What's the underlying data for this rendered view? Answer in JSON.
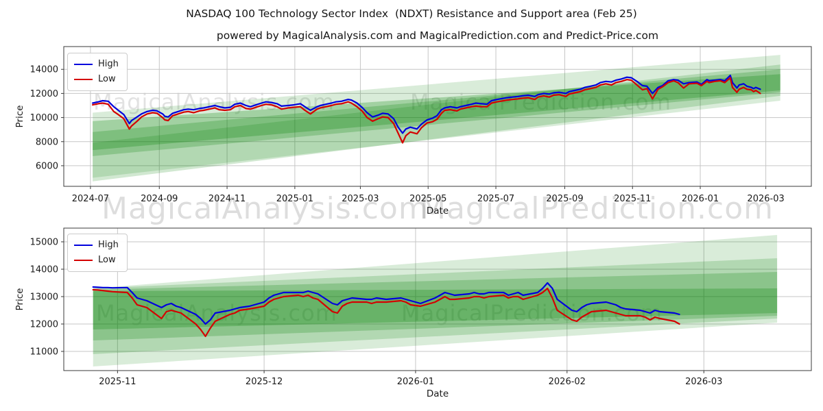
{
  "figure": {
    "title": "NASDAQ 100 Technology Sector Index  (NDXT) Resistance and Support area (Feb 25)",
    "subtitle": "powered by MagicalAnalysis.com and MagicalPrediction.com and Predict-Price.com"
  },
  "watermarks": {
    "analysis": "MagicalAnalysis.com",
    "prediction": "MagicalPrediction.com"
  },
  "colors": {
    "high": "#0000dd",
    "low": "#d40000",
    "band": "#008000",
    "grid": "#c6c6c6",
    "spine": "#3a3a3a",
    "text": "#191919"
  },
  "chart_data": [
    {
      "type": "line",
      "xlabel": "Date",
      "ylabel": "Price",
      "grid": true,
      "legend_position": "upper-left",
      "legend": [
        "High",
        "Low"
      ],
      "x_ticks": [
        "2024-07",
        "2024-09",
        "2024-11",
        "2025-01",
        "2025-03",
        "2025-05",
        "2025-07",
        "2025-09",
        "2025-11",
        "2026-01",
        "2026-03"
      ],
      "y_ticks": [
        6000,
        8000,
        10000,
        12000,
        14000
      ],
      "xlim": [
        "2024-06-07",
        "2026-04-11"
      ],
      "ylim": [
        4290,
        15890
      ],
      "dates": [
        "2024-07-03",
        "2024-07-08",
        "2024-07-12",
        "2024-07-17",
        "2024-07-22",
        "2024-07-26",
        "2024-07-31",
        "2024-08-05",
        "2024-08-07",
        "2024-08-12",
        "2024-08-16",
        "2024-08-21",
        "2024-08-26",
        "2024-08-30",
        "2024-09-04",
        "2024-09-06",
        "2024-09-09",
        "2024-09-13",
        "2024-09-18",
        "2024-09-23",
        "2024-09-27",
        "2024-10-02",
        "2024-10-07",
        "2024-10-11",
        "2024-10-16",
        "2024-10-21",
        "2024-10-25",
        "2024-10-30",
        "2024-11-04",
        "2024-11-08",
        "2024-11-13",
        "2024-11-18",
        "2024-11-22",
        "2024-11-27",
        "2024-12-02",
        "2024-12-06",
        "2024-12-11",
        "2024-12-16",
        "2024-12-20",
        "2024-12-26",
        "2024-12-31",
        "2025-01-06",
        "2025-01-10",
        "2025-01-15",
        "2025-01-21",
        "2025-01-24",
        "2025-01-29",
        "2025-02-03",
        "2025-02-07",
        "2025-02-12",
        "2025-02-18",
        "2025-02-21",
        "2025-02-26",
        "2025-03-03",
        "2025-03-07",
        "2025-03-12",
        "2025-03-17",
        "2025-03-21",
        "2025-03-26",
        "2025-03-31",
        "2025-04-04",
        "2025-04-08",
        "2025-04-11",
        "2025-04-15",
        "2025-04-21",
        "2025-04-25",
        "2025-04-30",
        "2025-05-05",
        "2025-05-09",
        "2025-05-13",
        "2025-05-16",
        "2025-05-21",
        "2025-05-27",
        "2025-05-30",
        "2025-06-04",
        "2025-06-09",
        "2025-06-13",
        "2025-06-18",
        "2025-06-23",
        "2025-06-27",
        "2025-07-02",
        "2025-07-08",
        "2025-07-11",
        "2025-07-16",
        "2025-07-21",
        "2025-07-25",
        "2025-07-30",
        "2025-08-05",
        "2025-08-08",
        "2025-08-13",
        "2025-08-18",
        "2025-08-22",
        "2025-08-27",
        "2025-09-02",
        "2025-09-05",
        "2025-09-10",
        "2025-09-15",
        "2025-09-19",
        "2025-09-24",
        "2025-09-29",
        "2025-10-03",
        "2025-10-08",
        "2025-10-13",
        "2025-10-17",
        "2025-10-22",
        "2025-10-27",
        "2025-10-31",
        "2025-11-05",
        "2025-11-10",
        "2025-11-14",
        "2025-11-19",
        "2025-11-24",
        "2025-11-28",
        "2025-12-03",
        "2025-12-08",
        "2025-12-12",
        "2025-12-17",
        "2025-12-22",
        "2025-12-29",
        "2026-01-02",
        "2026-01-07",
        "2026-01-09",
        "2026-01-14",
        "2026-01-19",
        "2026-01-23",
        "2026-01-28",
        "2026-01-30",
        "2026-02-03",
        "2026-02-05",
        "2026-02-09",
        "2026-02-12",
        "2026-02-16",
        "2026-02-18",
        "2026-02-20",
        "2026-02-24"
      ],
      "series": [
        {
          "name": "High",
          "color": "#0000dd",
          "values": [
            11200,
            11300,
            11400,
            11350,
            10900,
            10600,
            10250,
            9500,
            9750,
            10050,
            10300,
            10500,
            10600,
            10550,
            10300,
            10100,
            10050,
            10350,
            10500,
            10650,
            10700,
            10650,
            10750,
            10800,
            10900,
            11000,
            10900,
            10800,
            10850,
            11100,
            11200,
            11000,
            10900,
            11050,
            11200,
            11300,
            11250,
            11150,
            10950,
            11000,
            11050,
            11150,
            10900,
            10600,
            10900,
            11000,
            11100,
            11200,
            11300,
            11350,
            11500,
            11450,
            11200,
            10800,
            10400,
            10050,
            10200,
            10350,
            10300,
            9900,
            9200,
            8700,
            9050,
            9200,
            9050,
            9450,
            9800,
            9950,
            10150,
            10650,
            10800,
            10900,
            10800,
            10900,
            11000,
            11100,
            11200,
            11150,
            11100,
            11400,
            11500,
            11600,
            11650,
            11700,
            11750,
            11800,
            11850,
            11750,
            11900,
            12000,
            11950,
            12050,
            12100,
            12000,
            12150,
            12250,
            12350,
            12500,
            12600,
            12700,
            12900,
            13000,
            12950,
            13100,
            13200,
            13350,
            13300,
            13000,
            12650,
            12600,
            12000,
            12500,
            12650,
            13050,
            13150,
            13100,
            12800,
            12900,
            12950,
            12750,
            13150,
            13050,
            13100,
            13150,
            13050,
            13500,
            12900,
            12450,
            12700,
            12800,
            12600,
            12500,
            12400,
            12500,
            12350
          ]
        },
        {
          "name": "Low",
          "color": "#d40000",
          "values": [
            11050,
            11150,
            11200,
            11100,
            10500,
            10250,
            9900,
            9050,
            9300,
            9700,
            10050,
            10300,
            10400,
            10350,
            10000,
            9800,
            9750,
            10150,
            10300,
            10450,
            10500,
            10400,
            10550,
            10600,
            10700,
            10800,
            10650,
            10600,
            10650,
            10900,
            11000,
            10750,
            10700,
            10850,
            11000,
            11100,
            11050,
            10900,
            10700,
            10800,
            10850,
            10900,
            10600,
            10300,
            10700,
            10800,
            10900,
            11000,
            11100,
            11150,
            11300,
            11200,
            10900,
            10500,
            10000,
            9700,
            9900,
            10050,
            10000,
            9500,
            8700,
            7900,
            8500,
            8800,
            8650,
            9150,
            9550,
            9650,
            9850,
            10350,
            10600,
            10650,
            10550,
            10700,
            10800,
            10900,
            10950,
            10900,
            10900,
            11200,
            11300,
            11400,
            11450,
            11500,
            11550,
            11600,
            11650,
            11500,
            11700,
            11800,
            11700,
            11850,
            11900,
            11750,
            11950,
            12050,
            12150,
            12300,
            12400,
            12500,
            12700,
            12800,
            12700,
            12900,
            13000,
            13150,
            13100,
            12700,
            12300,
            12400,
            11550,
            12350,
            12550,
            12900,
            13050,
            12900,
            12450,
            12800,
            12850,
            12650,
            13000,
            12900,
            13000,
            13050,
            12900,
            13300,
            12500,
            12100,
            12350,
            12500,
            12350,
            12300,
            12150,
            12250,
            12000
          ]
        }
      ],
      "bands": [
        {
          "start": "2024-07-03",
          "end": "2026-03-14",
          "start_range": [
            5000,
            10400
          ],
          "end_range": [
            11400,
            15200
          ],
          "opacity": 0.15
        },
        {
          "start": "2024-07-03",
          "end": "2026-03-14",
          "start_range": [
            4700,
            7900
          ],
          "end_range": [
            11800,
            14400
          ],
          "opacity": 0.18
        },
        {
          "start": "2024-07-03",
          "end": "2026-03-14",
          "start_range": [
            6800,
            8800
          ],
          "end_range": [
            12100,
            14000
          ],
          "opacity": 0.22
        },
        {
          "start": "2024-07-03",
          "end": "2026-03-14",
          "start_range": [
            7300,
            9700
          ],
          "end_range": [
            12250,
            13600
          ],
          "opacity": 0.25
        }
      ]
    },
    {
      "type": "line",
      "xlabel": "Date",
      "ylabel": "Price",
      "grid": true,
      "legend_position": "upper-left",
      "legend": [
        "High",
        "Low"
      ],
      "x_ticks": [
        "2025-11",
        "2025-12",
        "2026-01",
        "2026-02",
        "2026-03"
      ],
      "y_ticks": [
        11000,
        12000,
        13000,
        14000,
        15000
      ],
      "xlim": [
        "2025-10-21",
        "2026-03-23"
      ],
      "ylim": [
        10300,
        15500
      ],
      "dates": [
        "2025-10-27",
        "2025-10-28",
        "2025-10-29",
        "2025-10-30",
        "2025-10-31",
        "2025-11-03",
        "2025-11-04",
        "2025-11-05",
        "2025-11-06",
        "2025-11-07",
        "2025-11-10",
        "2025-11-11",
        "2025-11-12",
        "2025-11-13",
        "2025-11-14",
        "2025-11-17",
        "2025-11-18",
        "2025-11-19",
        "2025-11-20",
        "2025-11-21",
        "2025-11-24",
        "2025-11-25",
        "2025-11-26",
        "2025-11-28",
        "2025-12-01",
        "2025-12-02",
        "2025-12-03",
        "2025-12-04",
        "2025-12-05",
        "2025-12-08",
        "2025-12-09",
        "2025-12-10",
        "2025-12-11",
        "2025-12-12",
        "2025-12-15",
        "2025-12-16",
        "2025-12-17",
        "2025-12-18",
        "2025-12-19",
        "2025-12-22",
        "2025-12-23",
        "2025-12-24",
        "2025-12-26",
        "2025-12-29",
        "2025-12-30",
        "2025-12-31",
        "2026-01-02",
        "2026-01-05",
        "2026-01-06",
        "2026-01-07",
        "2026-01-08",
        "2026-01-09",
        "2026-01-12",
        "2026-01-13",
        "2026-01-14",
        "2026-01-15",
        "2026-01-16",
        "2026-01-19",
        "2026-01-20",
        "2026-01-21",
        "2026-01-22",
        "2026-01-23",
        "2026-01-26",
        "2026-01-27",
        "2026-01-28",
        "2026-01-29",
        "2026-01-30",
        "2026-02-02",
        "2026-02-03",
        "2026-02-04",
        "2026-02-05",
        "2026-02-06",
        "2026-02-09",
        "2026-02-10",
        "2026-02-11",
        "2026-02-12",
        "2026-02-13",
        "2026-02-16",
        "2026-02-17",
        "2026-02-18",
        "2026-02-19",
        "2026-02-20",
        "2026-02-23",
        "2026-02-24"
      ],
      "series": [
        {
          "name": "High",
          "color": "#0000dd",
          "values": [
            13350,
            13340,
            13330,
            13330,
            13320,
            13330,
            13150,
            12950,
            12900,
            12850,
            12600,
            12700,
            12750,
            12650,
            12600,
            12350,
            12200,
            12000,
            12150,
            12400,
            12500,
            12550,
            12600,
            12650,
            12800,
            12950,
            13050,
            13100,
            13150,
            13150,
            13150,
            13200,
            13150,
            13100,
            12750,
            12700,
            12850,
            12900,
            12950,
            12900,
            12900,
            12950,
            12900,
            12950,
            12900,
            12850,
            12750,
            12950,
            13050,
            13150,
            13100,
            13050,
            13100,
            13150,
            13100,
            13100,
            13150,
            13150,
            13050,
            13100,
            13150,
            13050,
            13150,
            13300,
            13500,
            13300,
            12900,
            12500,
            12450,
            12600,
            12700,
            12750,
            12800,
            12750,
            12700,
            12600,
            12550,
            12500,
            12450,
            12400,
            12500,
            12450,
            12400,
            12350
          ]
        },
        {
          "name": "Low",
          "color": "#d40000",
          "values": [
            13250,
            13240,
            13220,
            13200,
            13180,
            13150,
            12950,
            12700,
            12650,
            12600,
            12200,
            12450,
            12500,
            12450,
            12400,
            12000,
            11800,
            11550,
            11850,
            12100,
            12350,
            12400,
            12500,
            12550,
            12650,
            12800,
            12900,
            12950,
            13000,
            13050,
            13000,
            13050,
            12950,
            12900,
            12450,
            12400,
            12650,
            12750,
            12800,
            12800,
            12750,
            12800,
            12800,
            12850,
            12800,
            12700,
            12650,
            12800,
            12900,
            13000,
            12900,
            12900,
            12950,
            13000,
            13000,
            12950,
            13000,
            13050,
            12950,
            13000,
            13000,
            12900,
            13050,
            13150,
            13300,
            12950,
            12500,
            12150,
            12100,
            12250,
            12350,
            12450,
            12500,
            12450,
            12400,
            12350,
            12300,
            12300,
            12250,
            12150,
            12250,
            12200,
            12100,
            12000
          ]
        }
      ],
      "bands": [
        {
          "start": "2025-10-27",
          "end": "2026-03-16",
          "start_range": [
            10450,
            13300
          ],
          "end_range": [
            12050,
            15250
          ],
          "opacity": 0.15
        },
        {
          "start": "2025-10-27",
          "end": "2026-03-16",
          "start_range": [
            10900,
            13300
          ],
          "end_range": [
            12200,
            14400
          ],
          "opacity": 0.18
        },
        {
          "start": "2025-10-27",
          "end": "2026-03-16",
          "start_range": [
            11400,
            13250
          ],
          "end_range": [
            12300,
            13900
          ],
          "opacity": 0.22
        },
        {
          "start": "2025-10-27",
          "end": "2026-03-16",
          "start_range": [
            11800,
            13200
          ],
          "end_range": [
            12400,
            13300
          ],
          "opacity": 0.25
        }
      ]
    }
  ]
}
